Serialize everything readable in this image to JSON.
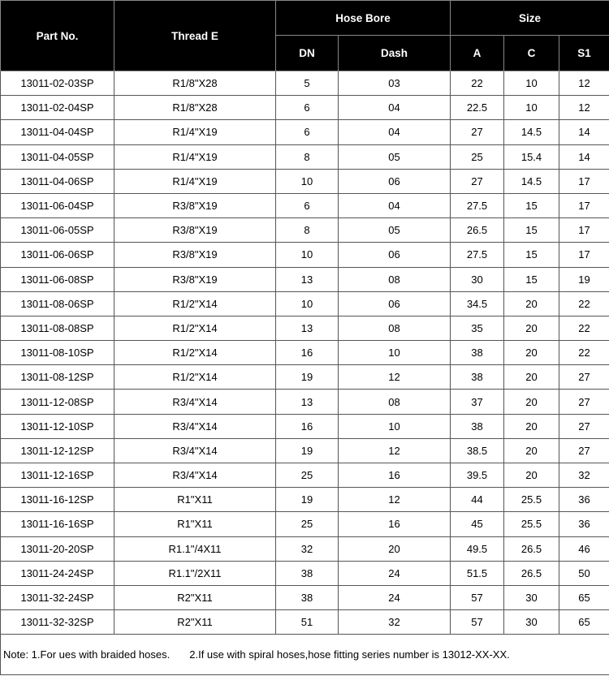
{
  "headers": {
    "part_no": "Part No.",
    "thread": "Thread E",
    "hose_bore": "Hose Bore",
    "size": "Size",
    "dn": "DN",
    "dash": "Dash",
    "a": "A",
    "c": "C",
    "s1": "S1"
  },
  "rows": [
    [
      "13011-02-03SP",
      "R1/8\"X28",
      "5",
      "03",
      "22",
      "10",
      "12"
    ],
    [
      "13011-02-04SP",
      "R1/8\"X28",
      "6",
      "04",
      "22.5",
      "10",
      "12"
    ],
    [
      "13011-04-04SP",
      "R1/4\"X19",
      "6",
      "04",
      "27",
      "14.5",
      "14"
    ],
    [
      "13011-04-05SP",
      "R1/4\"X19",
      "8",
      "05",
      "25",
      "15.4",
      "14"
    ],
    [
      "13011-04-06SP",
      "R1/4\"X19",
      "10",
      "06",
      "27",
      "14.5",
      "17"
    ],
    [
      "13011-06-04SP",
      "R3/8\"X19",
      "6",
      "04",
      "27.5",
      "15",
      "17"
    ],
    [
      "13011-06-05SP",
      "R3/8\"X19",
      "8",
      "05",
      "26.5",
      "15",
      "17"
    ],
    [
      "13011-06-06SP",
      "R3/8\"X19",
      "10",
      "06",
      "27.5",
      "15",
      "17"
    ],
    [
      "13011-06-08SP",
      "R3/8\"X19",
      "13",
      "08",
      "30",
      "15",
      "19"
    ],
    [
      "13011-08-06SP",
      "R1/2\"X14",
      "10",
      "06",
      "34.5",
      "20",
      "22"
    ],
    [
      "13011-08-08SP",
      "R1/2\"X14",
      "13",
      "08",
      "35",
      "20",
      "22"
    ],
    [
      "13011-08-10SP",
      "R1/2\"X14",
      "16",
      "10",
      "38",
      "20",
      "22"
    ],
    [
      "13011-08-12SP",
      "R1/2\"X14",
      "19",
      "12",
      "38",
      "20",
      "27"
    ],
    [
      "13011-12-08SP",
      "R3/4\"X14",
      "13",
      "08",
      "37",
      "20",
      "27"
    ],
    [
      "13011-12-10SP",
      "R3/4\"X14",
      "16",
      "10",
      "38",
      "20",
      "27"
    ],
    [
      "13011-12-12SP",
      "R3/4\"X14",
      "19",
      "12",
      "38.5",
      "20",
      "27"
    ],
    [
      "13011-12-16SP",
      "R3/4\"X14",
      "25",
      "16",
      "39.5",
      "20",
      "32"
    ],
    [
      "13011-16-12SP",
      "R1\"X11",
      "19",
      "12",
      "44",
      "25.5",
      "36"
    ],
    [
      "13011-16-16SP",
      "R1\"X11",
      "25",
      "16",
      "45",
      "25.5",
      "36"
    ],
    [
      "13011-20-20SP",
      "R1.1\"/4X11",
      "32",
      "20",
      "49.5",
      "26.5",
      "46"
    ],
    [
      "13011-24-24SP",
      "R1.1\"/2X11",
      "38",
      "24",
      "51.5",
      "26.5",
      "50"
    ],
    [
      "13011-32-24SP",
      "R2\"X11",
      "38",
      "24",
      "57",
      "30",
      "65"
    ],
    [
      "13011-32-32SP",
      "R2\"X11",
      "51",
      "32",
      "57",
      "30",
      "65"
    ]
  ],
  "note": {
    "part1": "Note: 1.For ues with braided hoses.",
    "part2": "2.If use with spiral hoses,hose fitting series number is 13012-XX-XX."
  }
}
